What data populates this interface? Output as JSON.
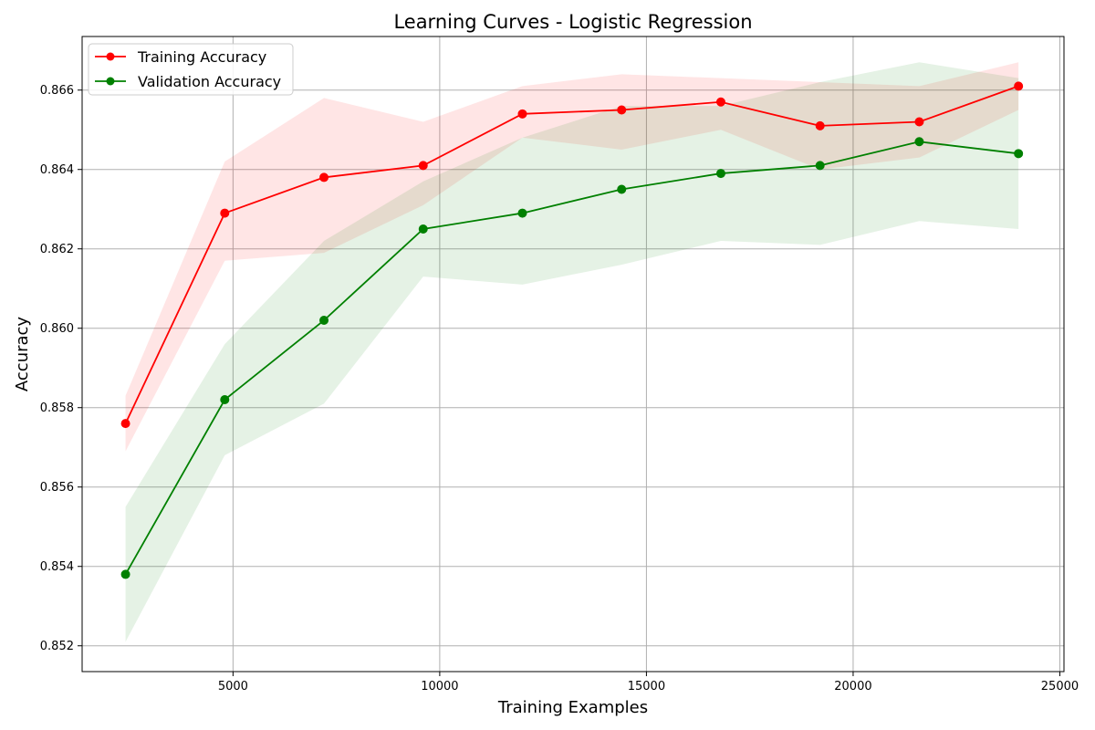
{
  "chart_data": {
    "type": "line",
    "title": "Learning Curves - Logistic Regression",
    "xlabel": "Training Examples",
    "ylabel": "Accuracy",
    "xlim": [
      1350,
      25100
    ],
    "ylim": [
      0.85135,
      0.86735
    ],
    "x_ticks": [
      5000,
      10000,
      15000,
      20000,
      25000
    ],
    "y_ticks": [
      0.852,
      0.854,
      0.856,
      0.858,
      0.86,
      0.862,
      0.864,
      0.866
    ],
    "x_tick_labels": [
      "5000",
      "10000",
      "15000",
      "20000",
      "25000"
    ],
    "y_tick_labels": [
      "0.852",
      "0.854",
      "0.856",
      "0.858",
      "0.860",
      "0.862",
      "0.864",
      "0.866"
    ],
    "grid": true,
    "legend_position": "top-left",
    "x": [
      2400,
      4800,
      7200,
      9600,
      12000,
      14400,
      16800,
      19200,
      21600,
      24000
    ],
    "series": [
      {
        "name": "Training Accuracy",
        "color": "#ff0000",
        "band_color": "#ff0000",
        "band_opacity": 0.1,
        "values": [
          0.8576,
          0.8629,
          0.8638,
          0.8641,
          0.8654,
          0.8655,
          0.8657,
          0.8651,
          0.8652,
          0.8661
        ],
        "lower": [
          0.8569,
          0.8617,
          0.8619,
          0.8631,
          0.8648,
          0.8645,
          0.865,
          0.864,
          0.8643,
          0.8655
        ],
        "upper": [
          0.8583,
          0.8642,
          0.8658,
          0.8652,
          0.8661,
          0.8664,
          0.8663,
          0.8662,
          0.8661,
          0.8667
        ]
      },
      {
        "name": "Validation Accuracy",
        "color": "#008000",
        "band_color": "#008000",
        "band_opacity": 0.1,
        "values": [
          0.8538,
          0.8582,
          0.8602,
          0.8625,
          0.8629,
          0.8635,
          0.8639,
          0.8641,
          0.8647,
          0.8644
        ],
        "lower": [
          0.8521,
          0.8568,
          0.8581,
          0.8613,
          0.8611,
          0.8616,
          0.8622,
          0.8621,
          0.8627,
          0.8625
        ],
        "upper": [
          0.8555,
          0.8596,
          0.8622,
          0.8637,
          0.8648,
          0.8656,
          0.8656,
          0.8662,
          0.8667,
          0.8663
        ]
      }
    ]
  }
}
